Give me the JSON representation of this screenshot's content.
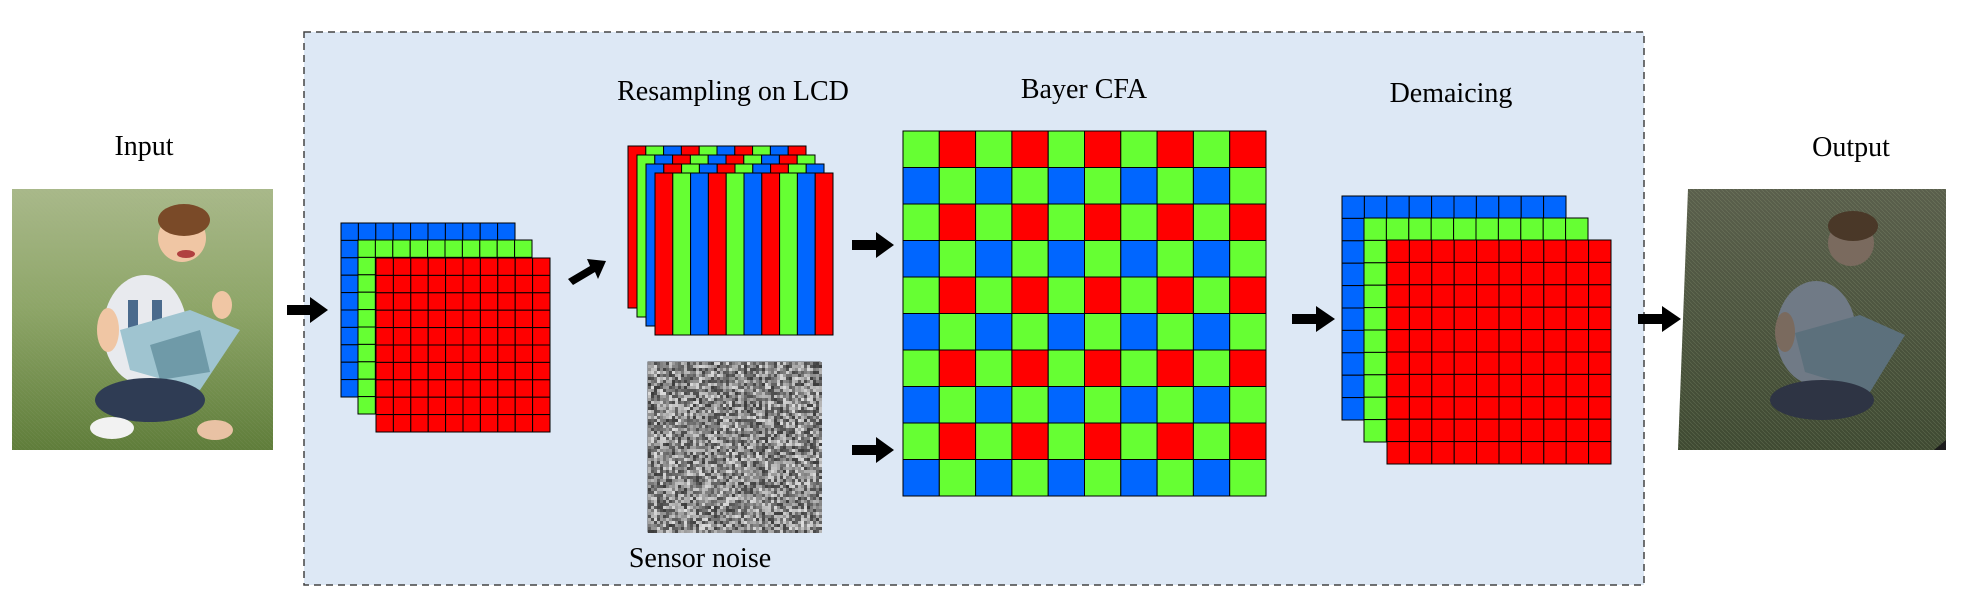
{
  "labels": {
    "input": "Input",
    "resampling": "Resampling on LCD",
    "bayer": "Bayer CFA",
    "demosaicing": "Demaicing",
    "sensor_noise": "Sensor noise",
    "output": "Output"
  },
  "colors": {
    "red": "#ff0000",
    "green": "#66ff33",
    "blue": "#0066ff",
    "panel_bg": "#dde8f5",
    "panel_border": "#444444",
    "arrow": "#000000"
  },
  "grids": {
    "rgb_input_cells": 10,
    "bayer_cells": 10,
    "demosaic_cells": 10,
    "lcd_stripe_count": 10
  },
  "bayer_pattern": [
    [
      "green",
      "red"
    ],
    [
      "blue",
      "green"
    ]
  ]
}
